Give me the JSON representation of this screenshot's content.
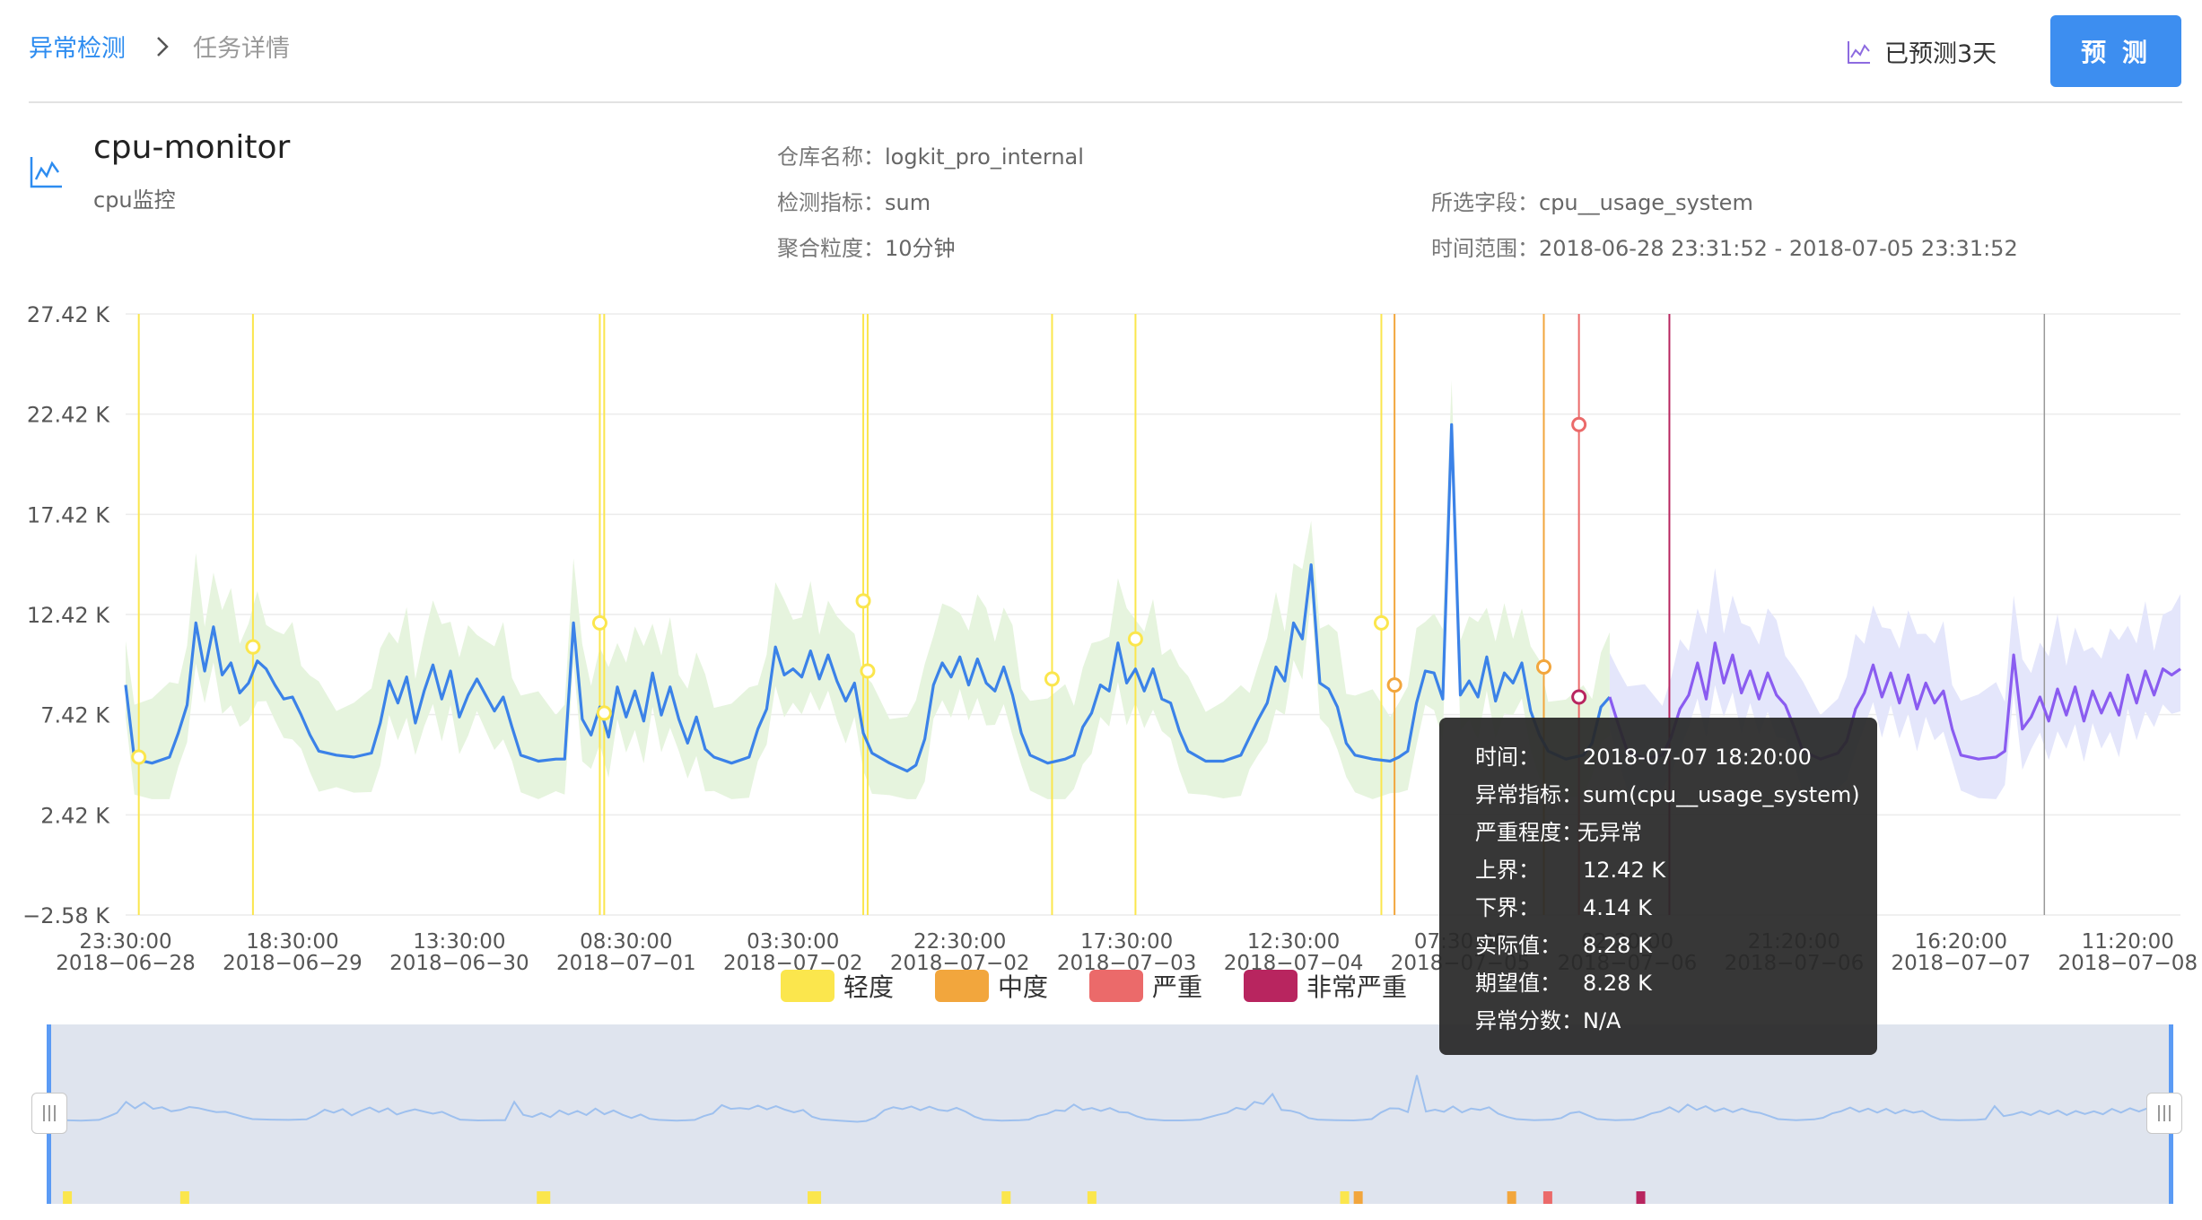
{
  "breadcrumb": {
    "root": "异常检测",
    "current": "任务详情"
  },
  "header": {
    "predicted_label": "已预测3天",
    "predict_button": "预 测"
  },
  "task": {
    "name": "cpu-monitor",
    "description": "cpu监控"
  },
  "meta": {
    "repo_label": "仓库名称：",
    "repo_value": "logkit_pro_internal",
    "metric_label": "检测指标：",
    "metric_value": "sum",
    "granularity_label": "聚合粒度：",
    "granularity_value": "10分钟",
    "field_label": "所选字段：",
    "field_value": "cpu__usage_system",
    "range_label": "时间范围：",
    "range_value": "2018-06-28 23:31:52 - 2018-07-05 23:31:52"
  },
  "legend": [
    {
      "label": "轻度",
      "color": "#fbe64d"
    },
    {
      "label": "中度",
      "color": "#f2a63d"
    },
    {
      "label": "严重",
      "color": "#eb6a6a"
    },
    {
      "label": "非常严重",
      "color": "#b8255f"
    }
  ],
  "tooltip": {
    "time_label": "时间：",
    "time_value": "2018-07-07 18:20:00",
    "metric_label": "异常指标：",
    "metric_value": "sum(cpu__usage_system)",
    "severity_label": "严重程度：",
    "severity_value": "无异常",
    "upper_label": "上界：",
    "upper_value": "12.42 K",
    "lower_label": "下界：",
    "lower_value": "4.14 K",
    "actual_label": "实际值：",
    "actual_value": "8.28 K",
    "expected_label": "期望值：",
    "expected_value": "8.28 K",
    "score_label": "异常分数：",
    "score_value": "N/A"
  },
  "chart_data": {
    "type": "line",
    "y_ticks": [
      "27.42 K",
      "22.42 K",
      "17.42 K",
      "12.42 K",
      "7.42 K",
      "2.42 K",
      "−2.58 K"
    ],
    "ylim": [
      -2.58,
      27.42
    ],
    "y_unit": "K",
    "x_ticks": [
      {
        "time": "23:30:00",
        "date": "2018−06−28"
      },
      {
        "time": "18:30:00",
        "date": "2018−06−29"
      },
      {
        "time": "13:30:00",
        "date": "2018−06−30"
      },
      {
        "time": "08:30:00",
        "date": "2018−07−01"
      },
      {
        "time": "03:30:00",
        "date": "2018−07−02"
      },
      {
        "time": "22:30:00",
        "date": "2018−07−02"
      },
      {
        "time": "17:30:00",
        "date": "2018−07−03"
      },
      {
        "time": "12:30:00",
        "date": "2018−07−04"
      },
      {
        "time": "07:30:00",
        "date": "2018−07−05"
      },
      {
        "time": "02:20:00",
        "date": "2018−07−06"
      },
      {
        "time": "21:20:00",
        "date": "2018−07−06"
      },
      {
        "time": "16:20:00",
        "date": "2018−07−07"
      },
      {
        "time": "11:20:00",
        "date": "2018−07−08"
      }
    ],
    "x_range_hours": [
      0,
      234
    ],
    "x_tick_start_hours": 0,
    "x_tick_step_hours": 19,
    "actual_end_hours": 169,
    "series": [
      {
        "values": [
          [
            0,
            8.9
          ],
          [
            1,
            5.2
          ],
          [
            3,
            5.0
          ],
          [
            5,
            5.3
          ],
          [
            6,
            6.5
          ],
          [
            7,
            7.9
          ],
          [
            8,
            12.0
          ],
          [
            9,
            9.6
          ],
          [
            10,
            11.8
          ],
          [
            11,
            9.4
          ],
          [
            12,
            10.0
          ],
          [
            13,
            8.5
          ],
          [
            14,
            9.0
          ],
          [
            15,
            10.1
          ],
          [
            16,
            9.7
          ],
          [
            17,
            8.9
          ],
          [
            18,
            8.2
          ],
          [
            19,
            8.3
          ],
          [
            20,
            7.4
          ],
          [
            21,
            6.4
          ],
          [
            22,
            5.6
          ],
          [
            24,
            5.4
          ],
          [
            26,
            5.3
          ],
          [
            28,
            5.5
          ],
          [
            29,
            7.0
          ],
          [
            30,
            9.1
          ],
          [
            31,
            8.0
          ],
          [
            32,
            9.3
          ],
          [
            33,
            7.0
          ],
          [
            34,
            8.6
          ],
          [
            35,
            9.9
          ],
          [
            36,
            8.2
          ],
          [
            37,
            9.6
          ],
          [
            38,
            7.3
          ],
          [
            39,
            8.4
          ],
          [
            40,
            9.2
          ],
          [
            41,
            8.4
          ],
          [
            42,
            7.6
          ],
          [
            43,
            8.3
          ],
          [
            44,
            6.8
          ],
          [
            45,
            5.4
          ],
          [
            47,
            5.1
          ],
          [
            49,
            5.2
          ],
          [
            50,
            5.2
          ],
          [
            51,
            12.0
          ],
          [
            52,
            7.2
          ],
          [
            53,
            6.4
          ],
          [
            54,
            7.8
          ],
          [
            55,
            6.3
          ],
          [
            56,
            8.8
          ],
          [
            57,
            7.3
          ],
          [
            58,
            8.6
          ],
          [
            59,
            7.1
          ],
          [
            60,
            9.5
          ],
          [
            61,
            7.4
          ],
          [
            62,
            8.8
          ],
          [
            63,
            7.2
          ],
          [
            64,
            6.0
          ],
          [
            65,
            7.3
          ],
          [
            66,
            5.7
          ],
          [
            67,
            5.3
          ],
          [
            69,
            5.0
          ],
          [
            71,
            5.3
          ],
          [
            72,
            6.7
          ],
          [
            73,
            7.7
          ],
          [
            74,
            10.8
          ],
          [
            75,
            9.4
          ],
          [
            76,
            9.7
          ],
          [
            77,
            9.3
          ],
          [
            78,
            10.6
          ],
          [
            79,
            9.2
          ],
          [
            80,
            10.4
          ],
          [
            81,
            9.1
          ],
          [
            82,
            8.1
          ],
          [
            83,
            9.0
          ],
          [
            84,
            6.5
          ],
          [
            85,
            5.5
          ],
          [
            87,
            5.0
          ],
          [
            89,
            4.6
          ],
          [
            90,
            4.9
          ],
          [
            91,
            6.2
          ],
          [
            92,
            8.9
          ],
          [
            93,
            10.0
          ],
          [
            94,
            9.3
          ],
          [
            95,
            10.3
          ],
          [
            96,
            8.9
          ],
          [
            97,
            10.2
          ],
          [
            98,
            9.0
          ],
          [
            99,
            8.6
          ],
          [
            100,
            9.8
          ],
          [
            101,
            8.4
          ],
          [
            102,
            6.5
          ],
          [
            103,
            5.4
          ],
          [
            105,
            5.0
          ],
          [
            107,
            5.2
          ],
          [
            108,
            5.4
          ],
          [
            109,
            6.8
          ],
          [
            110,
            7.5
          ],
          [
            111,
            8.9
          ],
          [
            112,
            8.6
          ],
          [
            113,
            11.0
          ],
          [
            114,
            9.0
          ],
          [
            115,
            9.7
          ],
          [
            116,
            8.6
          ],
          [
            117,
            9.7
          ],
          [
            118,
            8.2
          ],
          [
            119,
            8.0
          ],
          [
            120,
            6.6
          ],
          [
            121,
            5.6
          ],
          [
            123,
            5.1
          ],
          [
            125,
            5.1
          ],
          [
            127,
            5.4
          ],
          [
            128,
            6.3
          ],
          [
            129,
            7.2
          ],
          [
            130,
            8.0
          ],
          [
            131,
            9.8
          ],
          [
            132,
            9.1
          ],
          [
            133,
            12.0
          ],
          [
            134,
            11.2
          ],
          [
            135,
            14.9
          ],
          [
            136,
            9.0
          ],
          [
            137,
            8.7
          ],
          [
            138,
            7.8
          ],
          [
            139,
            6.0
          ],
          [
            140,
            5.4
          ],
          [
            142,
            5.2
          ],
          [
            144,
            5.1
          ],
          [
            145,
            5.3
          ],
          [
            146,
            5.6
          ],
          [
            147,
            8.0
          ],
          [
            148,
            9.6
          ],
          [
            149,
            9.5
          ],
          [
            150,
            8.2
          ],
          [
            151,
            21.9
          ],
          [
            152,
            8.4
          ],
          [
            153,
            9.1
          ],
          [
            154,
            8.3
          ],
          [
            155,
            10.3
          ],
          [
            156,
            8.1
          ],
          [
            157,
            9.5
          ],
          [
            158,
            9.0
          ],
          [
            159,
            10.0
          ],
          [
            160,
            7.6
          ],
          [
            161,
            6.4
          ],
          [
            162,
            5.6
          ],
          [
            164,
            5.2
          ],
          [
            166,
            5.4
          ],
          [
            167,
            6.0
          ],
          [
            168,
            7.8
          ],
          [
            169,
            8.3
          ]
        ]
      },
      {
        "values": [
          [
            169,
            8.3
          ],
          [
            170,
            6.9
          ],
          [
            171,
            5.6
          ],
          [
            173,
            5.2
          ],
          [
            175,
            5.4
          ],
          [
            176,
            6.3
          ],
          [
            177,
            7.7
          ],
          [
            178,
            8.4
          ],
          [
            179,
            10.0
          ],
          [
            180,
            8.2
          ],
          [
            181,
            11.0
          ],
          [
            182,
            9.0
          ],
          [
            183,
            10.4
          ],
          [
            184,
            8.5
          ],
          [
            185,
            9.6
          ],
          [
            186,
            8.2
          ],
          [
            187,
            9.5
          ],
          [
            188,
            8.4
          ],
          [
            189,
            7.9
          ],
          [
            190,
            6.8
          ],
          [
            191,
            5.6
          ],
          [
            193,
            5.2
          ],
          [
            195,
            5.5
          ],
          [
            196,
            6.1
          ],
          [
            197,
            7.7
          ],
          [
            198,
            8.5
          ],
          [
            199,
            9.9
          ],
          [
            200,
            8.3
          ],
          [
            201,
            9.5
          ],
          [
            202,
            8.0
          ],
          [
            203,
            9.4
          ],
          [
            204,
            7.7
          ],
          [
            205,
            9.0
          ],
          [
            206,
            8.0
          ],
          [
            207,
            8.6
          ],
          [
            208,
            6.7
          ],
          [
            209,
            5.4
          ],
          [
            211,
            5.2
          ],
          [
            213,
            5.3
          ],
          [
            214,
            5.6
          ],
          [
            215,
            10.4
          ],
          [
            216,
            6.7
          ],
          [
            217,
            7.3
          ],
          [
            218,
            8.3
          ],
          [
            219,
            7.1
          ],
          [
            220,
            8.7
          ],
          [
            221,
            7.4
          ],
          [
            222,
            8.8
          ],
          [
            223,
            7.1
          ],
          [
            224,
            8.6
          ],
          [
            225,
            7.5
          ],
          [
            226,
            8.5
          ],
          [
            227,
            7.4
          ],
          [
            228,
            9.4
          ],
          [
            229,
            8.0
          ],
          [
            230,
            9.6
          ],
          [
            231,
            8.4
          ],
          [
            232,
            9.7
          ],
          [
            233,
            9.4
          ],
          [
            234,
            9.7
          ]
        ]
      }
    ],
    "anomalies": [
      {
        "h": 1.5,
        "v": 5.3,
        "severity": "轻度"
      },
      {
        "h": 14.5,
        "v": 10.8,
        "severity": "轻度"
      },
      {
        "h": 54,
        "v": 12.0,
        "severity": "轻度"
      },
      {
        "h": 54.5,
        "v": 7.5,
        "severity": "轻度"
      },
      {
        "h": 84,
        "v": 13.1,
        "severity": "轻度"
      },
      {
        "h": 84.5,
        "v": 9.6,
        "severity": "轻度"
      },
      {
        "h": 105.5,
        "v": 9.2,
        "severity": "轻度"
      },
      {
        "h": 115,
        "v": 11.2,
        "severity": "轻度"
      },
      {
        "h": 143,
        "v": 12.0,
        "severity": "轻度"
      },
      {
        "h": 144.5,
        "v": 8.9,
        "severity": "中度"
      },
      {
        "h": 161.5,
        "v": 9.8,
        "severity": "中度"
      },
      {
        "h": 165.5,
        "v": 21.9,
        "severity": "严重"
      },
      {
        "h": 165.5,
        "v": 8.3,
        "severity": "非常严重"
      }
    ],
    "marker_lines": [
      {
        "h": 1.5,
        "severity": "轻度"
      },
      {
        "h": 14.5,
        "severity": "轻度"
      },
      {
        "h": 54,
        "severity": "轻度"
      },
      {
        "h": 54.5,
        "severity": "轻度"
      },
      {
        "h": 84,
        "severity": "轻度"
      },
      {
        "h": 84.5,
        "severity": "轻度"
      },
      {
        "h": 105.5,
        "severity": "轻度"
      },
      {
        "h": 115,
        "severity": "轻度"
      },
      {
        "h": 143,
        "severity": "轻度"
      },
      {
        "h": 144.5,
        "severity": "中度"
      },
      {
        "h": 161.5,
        "severity": "中度"
      },
      {
        "h": 165.5,
        "severity": "严重"
      },
      {
        "h": 175.8,
        "severity": "非常严重"
      }
    ],
    "hover_h": 218.5
  }
}
